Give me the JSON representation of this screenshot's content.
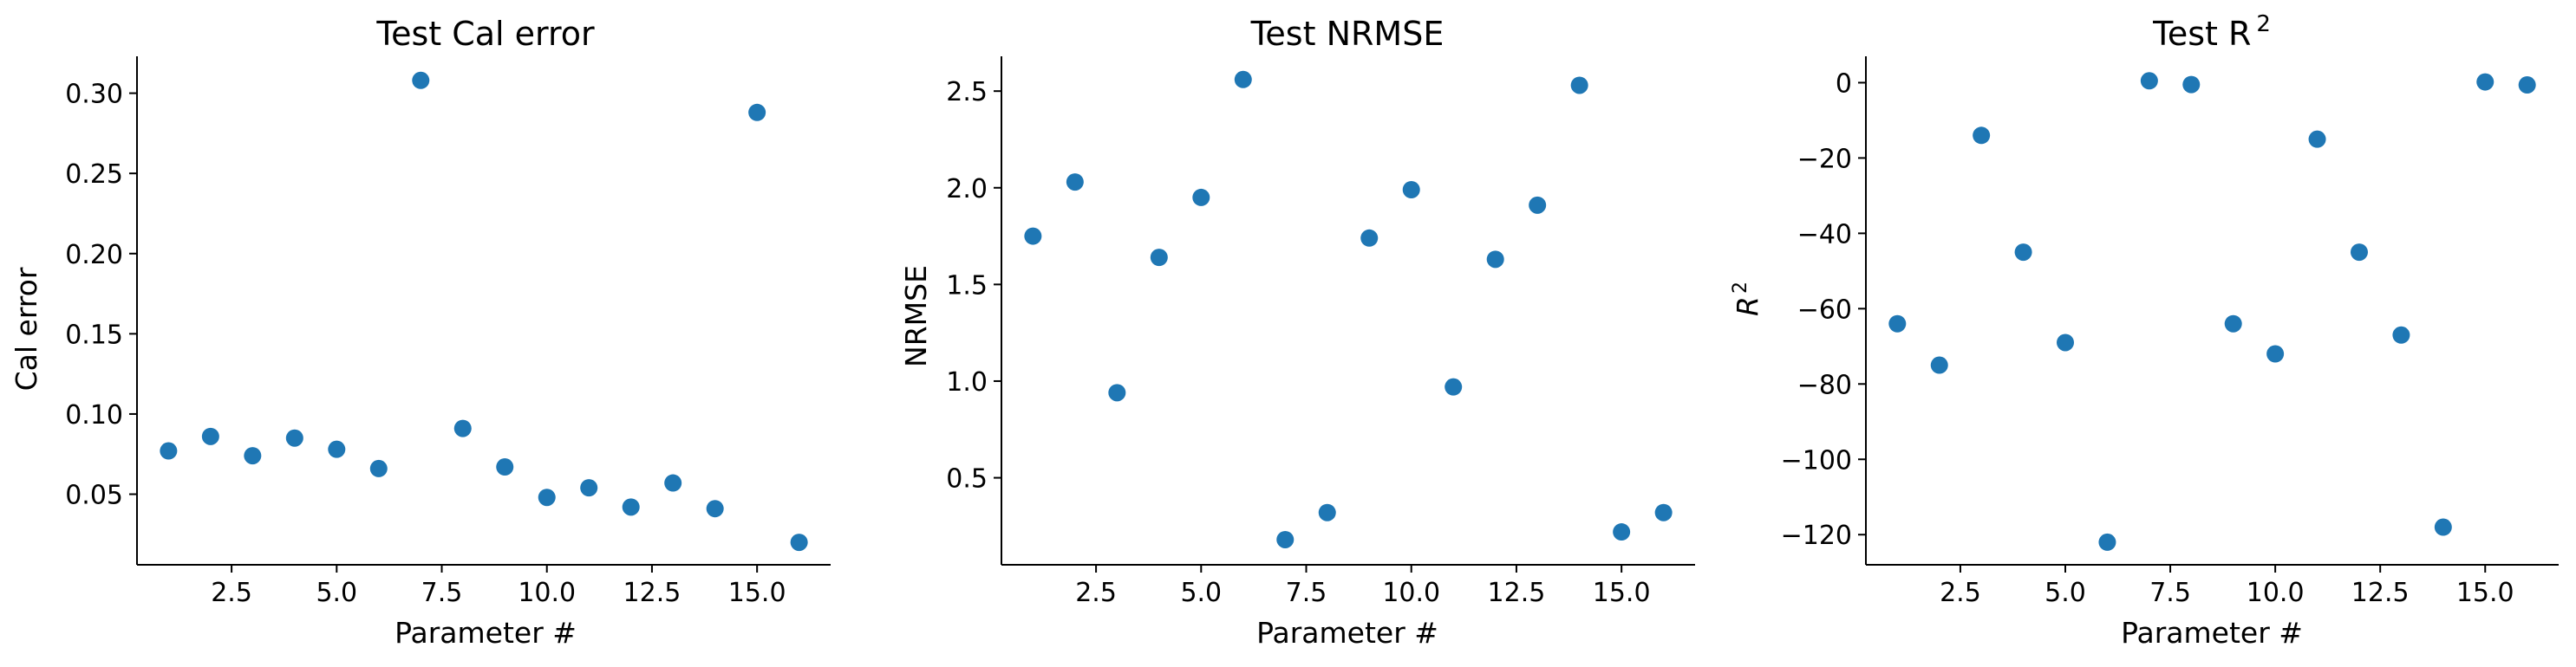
{
  "colors": {
    "marker": "#1f77b4",
    "axis": "#000000",
    "background": "#ffffff"
  },
  "chart_data": [
    {
      "type": "scatter",
      "title": "Test Cal error",
      "xlabel": "Parameter #",
      "ylabel": "Cal error",
      "xlim": [
        0.25,
        16.75
      ],
      "ylim": [
        0.006,
        0.323
      ],
      "xticks": [
        2.5,
        5.0,
        7.5,
        10.0,
        12.5,
        15.0
      ],
      "xticklabels": [
        "2.5",
        "5.0",
        "7.5",
        "10.0",
        "12.5",
        "15.0"
      ],
      "yticks": [
        0.05,
        0.1,
        0.15,
        0.2,
        0.25,
        0.3
      ],
      "yticklabels": [
        "0.05",
        "0.10",
        "0.15",
        "0.20",
        "0.25",
        "0.30"
      ],
      "grid": false,
      "x": [
        1,
        2,
        3,
        4,
        5,
        6,
        7,
        8,
        9,
        10,
        11,
        12,
        13,
        14,
        15,
        16
      ],
      "y": [
        0.077,
        0.086,
        0.074,
        0.085,
        0.078,
        0.066,
        0.308,
        0.091,
        0.067,
        0.048,
        0.054,
        0.042,
        0.057,
        0.041,
        0.288,
        0.02
      ]
    },
    {
      "type": "scatter",
      "title": "Test NRMSE",
      "xlabel": "Parameter #",
      "ylabel": "NRMSE",
      "xlim": [
        0.25,
        16.75
      ],
      "ylim": [
        0.05,
        2.68
      ],
      "xticks": [
        2.5,
        5.0,
        7.5,
        10.0,
        12.5,
        15.0
      ],
      "xticklabels": [
        "2.5",
        "5.0",
        "7.5",
        "10.0",
        "12.5",
        "15.0"
      ],
      "yticks": [
        0.5,
        1.0,
        1.5,
        2.0,
        2.5
      ],
      "yticklabels": [
        "0.5",
        "1.0",
        "1.5",
        "2.0",
        "2.5"
      ],
      "grid": false,
      "x": [
        1,
        2,
        3,
        4,
        5,
        6,
        7,
        8,
        9,
        10,
        11,
        12,
        13,
        14,
        15,
        16
      ],
      "y": [
        1.75,
        2.03,
        0.94,
        1.64,
        1.95,
        2.56,
        0.18,
        0.32,
        1.74,
        1.99,
        0.97,
        1.63,
        1.91,
        2.53,
        0.22,
        0.32
      ]
    },
    {
      "type": "scatter",
      "title": "Test R",
      "title_superscript": "2",
      "xlabel": "Parameter #",
      "ylabel": "R",
      "ylabel_superscript": "2",
      "xlim": [
        0.25,
        16.75
      ],
      "ylim": [
        -128,
        7
      ],
      "xticks": [
        2.5,
        5.0,
        7.5,
        10.0,
        12.5,
        15.0
      ],
      "xticklabels": [
        "2.5",
        "5.0",
        "7.5",
        "10.0",
        "12.5",
        "15.0"
      ],
      "yticks": [
        -120,
        -100,
        -80,
        -60,
        -40,
        -20,
        0
      ],
      "yticklabels": [
        "−120",
        "−100",
        "−80",
        "−60",
        "−40",
        "−20",
        "0"
      ],
      "grid": false,
      "x": [
        1,
        2,
        3,
        4,
        5,
        6,
        7,
        8,
        9,
        10,
        11,
        12,
        13,
        14,
        15,
        16
      ],
      "y": [
        -64,
        -75,
        -14,
        -45,
        -69,
        -122,
        0.5,
        -0.5,
        -64,
        -72,
        -15,
        -45,
        -67,
        -118,
        0.2,
        -0.6
      ]
    }
  ]
}
